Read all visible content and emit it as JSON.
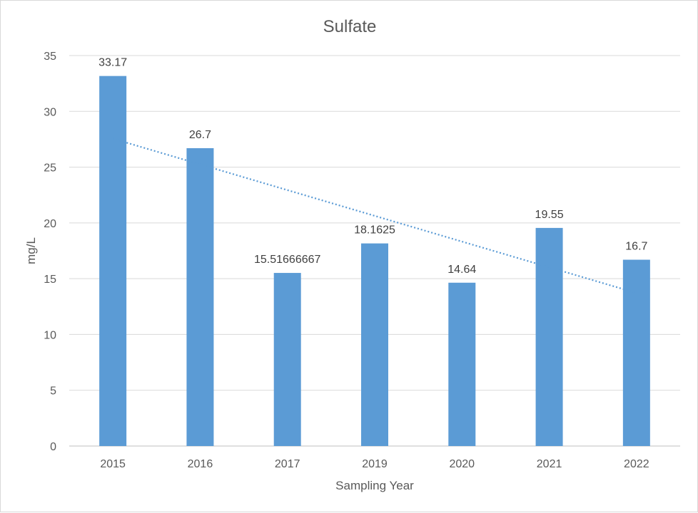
{
  "chart_data": {
    "type": "bar",
    "title": "Sulfate",
    "xlabel": "Sampling Year",
    "ylabel": "mg/L",
    "categories": [
      "2015",
      "2016",
      "2017",
      "2019",
      "2020",
      "2021",
      "2022"
    ],
    "values": [
      33.17,
      26.7,
      15.51666667,
      18.1625,
      14.64,
      19.55,
      16.7
    ],
    "data_labels": [
      "33.17",
      "26.7",
      "15.51666667",
      "18.1625",
      "14.64",
      "19.55",
      "16.7"
    ],
    "ylim": [
      0,
      35
    ],
    "yticks": [
      0,
      5,
      10,
      15,
      20,
      25,
      30,
      35
    ],
    "grid": true,
    "legend": "none",
    "trendline": {
      "type": "linear",
      "style": "dotted",
      "color": "#5b9bd5"
    },
    "bar_color": "#5b9bd5",
    "grid_color": "#d9d9d9"
  }
}
